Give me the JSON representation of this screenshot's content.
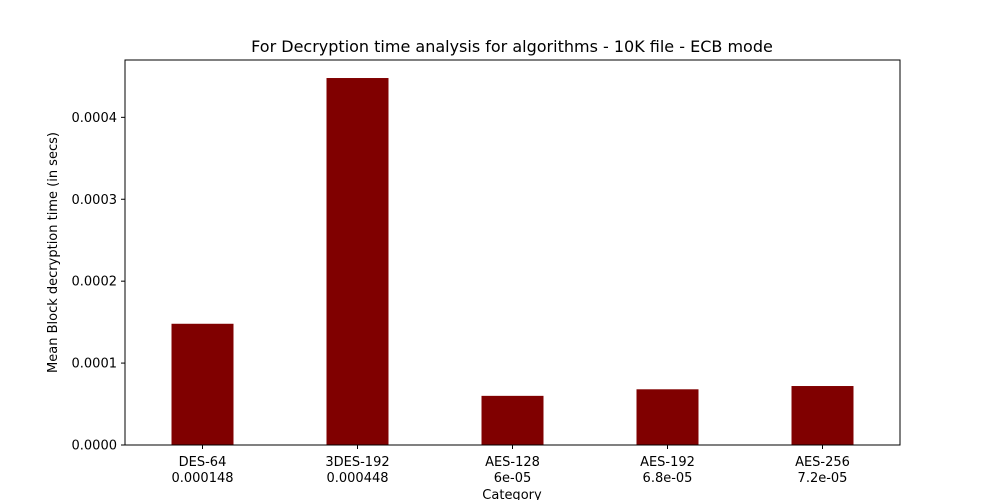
{
  "chart_data": {
    "type": "bar",
    "title": "For Decryption time analysis for algorithms - 10K file - ECB mode",
    "xlabel": "Category",
    "ylabel": "Mean Block decryption time (in secs)",
    "categories": [
      {
        "line1": "DES-64",
        "line2": "0.000148"
      },
      {
        "line1": "3DES-192",
        "line2": "0.000448"
      },
      {
        "line1": "AES-128",
        "line2": "6e-05"
      },
      {
        "line1": "AES-192",
        "line2": "6.8e-05"
      },
      {
        "line1": "AES-256",
        "line2": "7.2e-05"
      }
    ],
    "values": [
      0.000148,
      0.000448,
      6e-05,
      6.8e-05,
      7.2e-05
    ],
    "yticks": [
      {
        "value": 0,
        "label": "0.0000"
      },
      {
        "value": 0.0001,
        "label": "0.0001"
      },
      {
        "value": 0.0002,
        "label": "0.0002"
      },
      {
        "value": 0.0003,
        "label": "0.0003"
      },
      {
        "value": 0.0004,
        "label": "0.0004"
      }
    ],
    "ylim": [
      0,
      0.00047
    ],
    "bar_color": "#800000",
    "grid": false
  }
}
